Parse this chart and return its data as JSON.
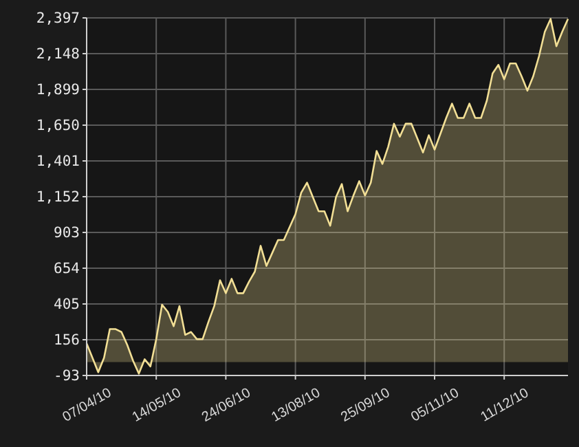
{
  "chart_data": {
    "type": "area",
    "categories": [
      "07/04/10",
      null,
      null,
      null,
      null,
      null,
      null,
      null,
      null,
      null,
      null,
      null,
      "14/05/10",
      null,
      null,
      null,
      null,
      null,
      null,
      null,
      null,
      null,
      null,
      null,
      "24/06/10",
      null,
      null,
      null,
      null,
      null,
      null,
      null,
      null,
      null,
      null,
      null,
      "13/08/10",
      null,
      null,
      null,
      null,
      null,
      null,
      null,
      null,
      null,
      null,
      null,
      "25/09/10",
      null,
      null,
      null,
      null,
      null,
      null,
      null,
      null,
      null,
      null,
      null,
      "05/11/10",
      null,
      null,
      null,
      null,
      null,
      null,
      null,
      null,
      null,
      null,
      null,
      "11/12/10",
      null,
      null,
      null,
      null,
      null,
      null,
      null,
      null,
      null,
      null,
      null
    ],
    "series": [
      {
        "color": "#f2df95",
        "values": [
          130,
          30,
          -70,
          30,
          230,
          230,
          210,
          120,
          10,
          -80,
          20,
          -30,
          160,
          400,
          350,
          250,
          390,
          190,
          210,
          160,
          160,
          280,
          390,
          570,
          480,
          580,
          480,
          480,
          560,
          630,
          810,
          670,
          760,
          850,
          850,
          940,
          1030,
          1180,
          1250,
          1150,
          1050,
          1050,
          950,
          1150,
          1240,
          1050,
          1160,
          1260,
          1160,
          1250,
          1470,
          1380,
          1500,
          1660,
          1570,
          1660,
          1660,
          1560,
          1460,
          1580,
          1480,
          1590,
          1700,
          1800,
          1700,
          1700,
          1800,
          1700,
          1700,
          1820,
          2010,
          2070,
          1970,
          2080,
          2080,
          1990,
          1890,
          1990,
          2130,
          2300,
          2390,
          2200,
          2300,
          2390
        ]
      }
    ],
    "ylim": [
      -93,
      2397
    ],
    "yticks": [
      {
        "value": -93,
        "label": "-93"
      },
      {
        "value": 156,
        "label": "156"
      },
      {
        "value": 405,
        "label": "405"
      },
      {
        "value": 654,
        "label": "654"
      },
      {
        "value": 903,
        "label": "903"
      },
      {
        "value": 1152,
        "label": "1,152"
      },
      {
        "value": 1401,
        "label": "1,401"
      },
      {
        "value": 1650,
        "label": "1,650"
      },
      {
        "value": 1899,
        "label": "1,899"
      },
      {
        "value": 2148,
        "label": "2,148"
      },
      {
        "value": 2397,
        "label": "2,397"
      }
    ],
    "grid": true
  }
}
